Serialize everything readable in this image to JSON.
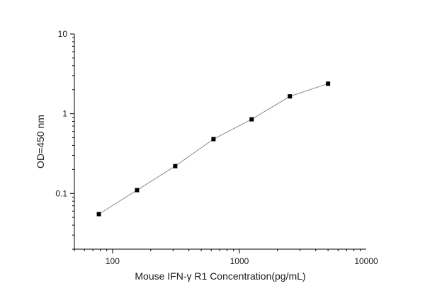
{
  "chart_data": {
    "type": "line",
    "xlabel": "Mouse IFN-γ  R1 Concentration(pg/mL)",
    "ylabel": "OD=450 nm",
    "x_scale": "log",
    "y_scale": "log",
    "xlim": [
      50,
      10000
    ],
    "ylim": [
      0.02,
      10
    ],
    "x_ticks": [
      100,
      1000,
      10000
    ],
    "x_tick_labels": [
      "100",
      "1000",
      "10000"
    ],
    "y_ticks": [
      0.1,
      1,
      10
    ],
    "y_tick_labels": [
      "0.1",
      "1",
      "10"
    ],
    "grid": false,
    "series": [
      {
        "x": [
          78,
          156,
          312,
          625,
          1250,
          2500,
          5000
        ],
        "y": [
          0.055,
          0.11,
          0.22,
          0.48,
          0.85,
          1.65,
          2.38
        ]
      }
    ],
    "colors": {
      "line": "#8a8a8a",
      "marker": "#000000",
      "axis": "#000000"
    }
  }
}
